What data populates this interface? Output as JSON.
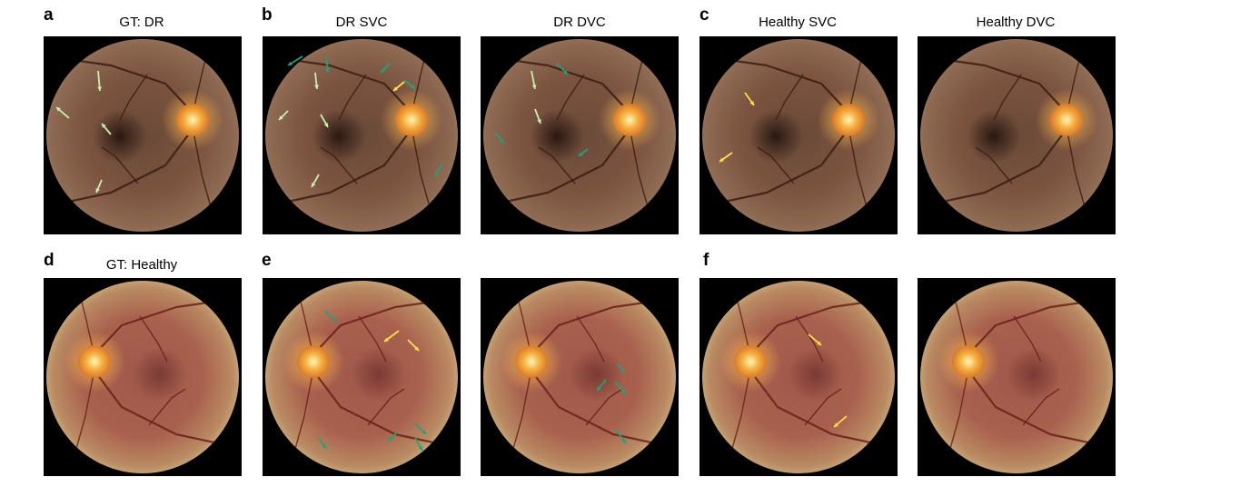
{
  "panel_letters": [
    "a",
    "b",
    "c",
    "d",
    "e",
    "f"
  ],
  "captions": {
    "gt_dr": "GT: DR",
    "dr_svc": "DR SVC",
    "dr_dvc": "DR DVC",
    "healthy_svc": "Healthy SVC",
    "healthy_dvc": "Healthy DVC",
    "gt_healthy": "GT: Healthy"
  },
  "arrow_colors": {
    "light_green": "#c8f0b0",
    "teal": "#1fa37a",
    "yellow": "#ffe14a"
  }
}
